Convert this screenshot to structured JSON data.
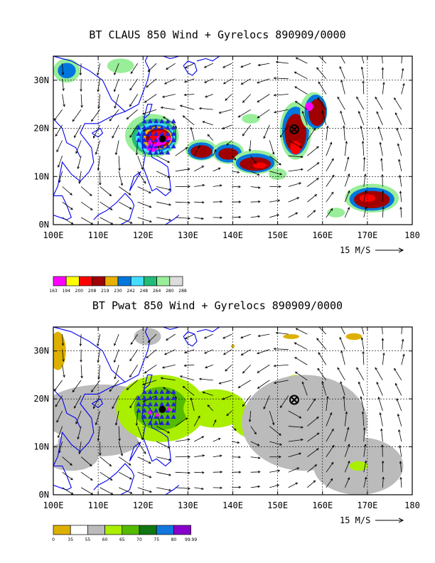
{
  "panels": [
    {
      "id": "top",
      "title": "BT CLAUS 850 Wind + Gyrelocs 890909/0000",
      "lat_labels": [
        "30N",
        "20N",
        "10N",
        "0N"
      ],
      "lon_labels": [
        "100E",
        "110E",
        "120E",
        "130E",
        "140E",
        "150E",
        "160E",
        "170E",
        "180"
      ],
      "vector_ref_label": "15 M/S",
      "colorbar": {
        "colors": [
          "#ff00ff",
          "#ffff00",
          "#ff0000",
          "#a00000",
          "#e8b000",
          "#0077dd",
          "#44ddff",
          "#22bb77",
          "#99ee99",
          "#dddddd"
        ],
        "labels": [
          "163",
          "194",
          "200",
          "208",
          "219",
          "230",
          "242",
          "248",
          "264",
          "280",
          "288"
        ]
      }
    },
    {
      "id": "bottom",
      "title": "BT Pwat 850 Wind + Gyrelocs 890909/0000",
      "lat_labels": [
        "30N",
        "20N",
        "10N",
        "0N"
      ],
      "lon_labels": [
        "100E",
        "110E",
        "120E",
        "130E",
        "140E",
        "150E",
        "160E",
        "170E",
        "180"
      ],
      "vector_ref_label": "15 M/S",
      "colorbar": {
        "colors": [
          "#ddb000",
          "#ffffff",
          "#bbbbbb",
          "#aaee00",
          "#55bb00",
          "#117711",
          "#1177dd",
          "#8800cc"
        ],
        "labels": [
          "0",
          "35",
          "55",
          "60",
          "65",
          "70",
          "75",
          "80",
          "99.99"
        ]
      }
    }
  ]
}
